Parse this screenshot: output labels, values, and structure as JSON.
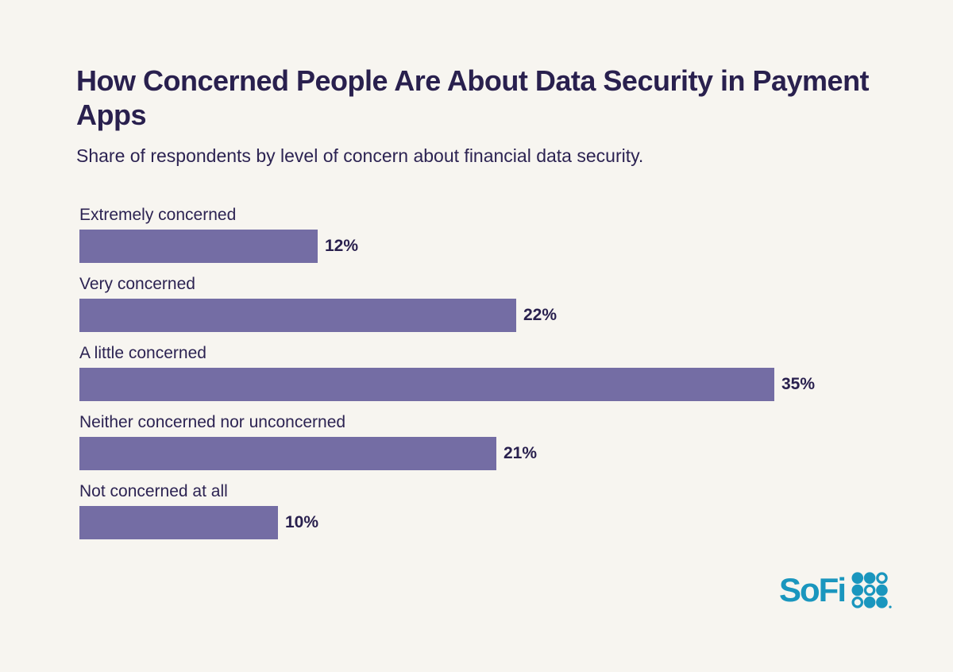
{
  "chart": {
    "title": "How Concerned People Are About Data Security in Payment Apps",
    "subtitle": "Share of respondents by level of concern about financial data security."
  },
  "chart_data": {
    "type": "bar",
    "orientation": "horizontal",
    "title": "How Concerned People Are About Data Security in Payment Apps",
    "subtitle": "Share of respondents by level of concern about financial data security.",
    "categories": [
      "Extremely concerned",
      "Very concerned",
      "A little concerned",
      "Neither concerned nor unconcerned",
      "Not concerned at all"
    ],
    "values": [
      12,
      22,
      35,
      21,
      10
    ],
    "value_labels": [
      "12%",
      "22%",
      "35%",
      "21%",
      "10%"
    ],
    "value_suffix": "%",
    "xlabel": "",
    "ylabel": "",
    "xlim": [
      0,
      35
    ],
    "grid": false,
    "legend": false,
    "bar_color": "#746DA4"
  },
  "branding": {
    "logo_text": "SoFi",
    "logo_color": "#1A96BE",
    "dot_pattern": [
      [
        "filled",
        "filled",
        "ring"
      ],
      [
        "filled",
        "ring",
        "filled"
      ],
      [
        "ring",
        "filled",
        "filled"
      ]
    ]
  },
  "colors": {
    "background": "#F7F5F0",
    "heading_text": "#29204E",
    "body_text": "#2C2352",
    "bar": "#746DA4",
    "brand_teal": "#1A96BE"
  }
}
